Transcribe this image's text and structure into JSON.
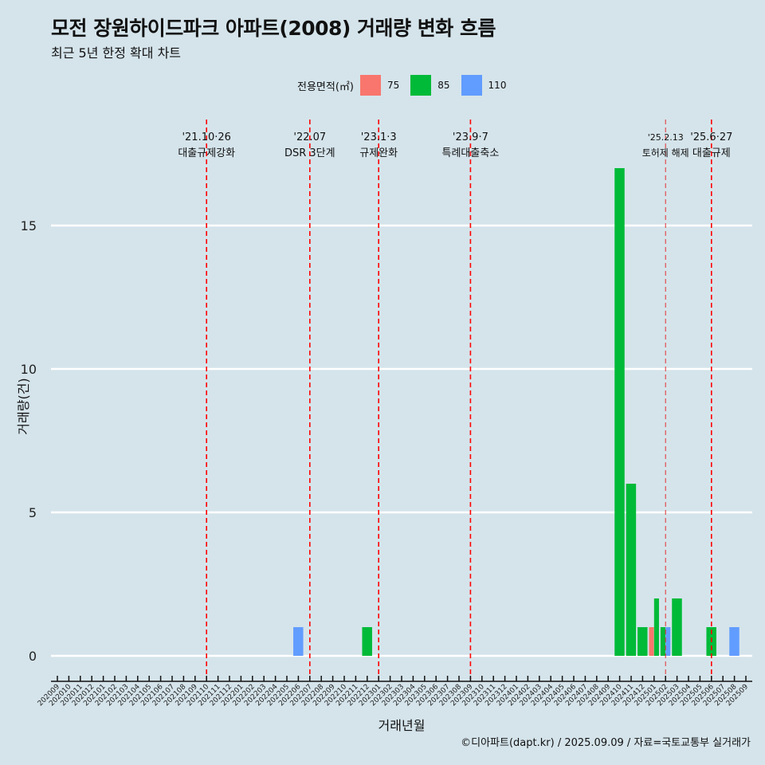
{
  "title": "모전 장원하이드파크 아파트(2008) 거래량 변화 흐름",
  "subtitle": "최근 5년 한정 확대 차트",
  "caption": "©디아파트(dapt.kr) / 2025.09.09 / 자료=국토교통부 실거래가",
  "legend": {
    "title": "전용면적(㎡)",
    "items": [
      {
        "label": "75",
        "color": "#f8766d"
      },
      {
        "label": "85",
        "color": "#00ba38"
      },
      {
        "label": "110",
        "color": "#619cff"
      }
    ]
  },
  "chart_data": {
    "type": "bar",
    "title": "모전 장원하이드파크 아파트(2008) 거래량 변화 흐름",
    "subtitle": "최근 5년 한정 확대 차트",
    "xlabel": "거래년월",
    "ylabel": "거래량(건)",
    "ylim": [
      0,
      17.5
    ],
    "yticks": [
      0,
      5,
      10,
      15
    ],
    "grid": "horizontal major",
    "legend_position": "top",
    "categories": [
      "202009",
      "202010",
      "202011",
      "202012",
      "202101",
      "202102",
      "202103",
      "202104",
      "202105",
      "202106",
      "202107",
      "202108",
      "202109",
      "202110",
      "202111",
      "202112",
      "202201",
      "202202",
      "202203",
      "202204",
      "202205",
      "202206",
      "202207",
      "202208",
      "202209",
      "202210",
      "202211",
      "202212",
      "202301",
      "202302",
      "202303",
      "202304",
      "202305",
      "202306",
      "202307",
      "202308",
      "202309",
      "202310",
      "202311",
      "202312",
      "202401",
      "202402",
      "202403",
      "202404",
      "202405",
      "202406",
      "202407",
      "202408",
      "202409",
      "202410",
      "202411",
      "202412",
      "202501",
      "202502",
      "202503",
      "202504",
      "202505",
      "202506",
      "202507",
      "202508",
      "202509"
    ],
    "series": [
      {
        "name": "75",
        "color": "#f8766d",
        "points": [
          {
            "x": "202501",
            "y": 1
          }
        ]
      },
      {
        "name": "85",
        "color": "#00ba38",
        "points": [
          {
            "x": "202212",
            "y": 1
          },
          {
            "x": "202410",
            "y": 17
          },
          {
            "x": "202411",
            "y": 6
          },
          {
            "x": "202412",
            "y": 1
          },
          {
            "x": "202501",
            "y": 2
          },
          {
            "x": "202502",
            "y": 1
          },
          {
            "x": "202503",
            "y": 2
          },
          {
            "x": "202506",
            "y": 1
          }
        ]
      },
      {
        "name": "110",
        "color": "#619cff",
        "points": [
          {
            "x": "202206",
            "y": 1
          },
          {
            "x": "202502",
            "y": 1
          },
          {
            "x": "202508",
            "y": 1
          }
        ]
      }
    ],
    "annotations": [
      {
        "x": "202110",
        "date": "'21.10·26",
        "text": "대출규제강화",
        "line": "#ff0000"
      },
      {
        "x": "202207",
        "date": "'22.07",
        "text": "DSR 3단계",
        "line": "#ff0000"
      },
      {
        "x": "202301",
        "date": "'23.1·3",
        "text": "규제완화",
        "line": "#ff0000"
      },
      {
        "x": "202309",
        "date": "'23.9·7",
        "text": "특례대출축소",
        "line": "#ff0000"
      },
      {
        "x": "202502",
        "date": "'25.2.13",
        "text": "토허제 해제",
        "line": "#e03030"
      },
      {
        "x": "202506",
        "date": "'25.6·27",
        "text": "대출규제",
        "line": "#ff0000"
      }
    ]
  }
}
